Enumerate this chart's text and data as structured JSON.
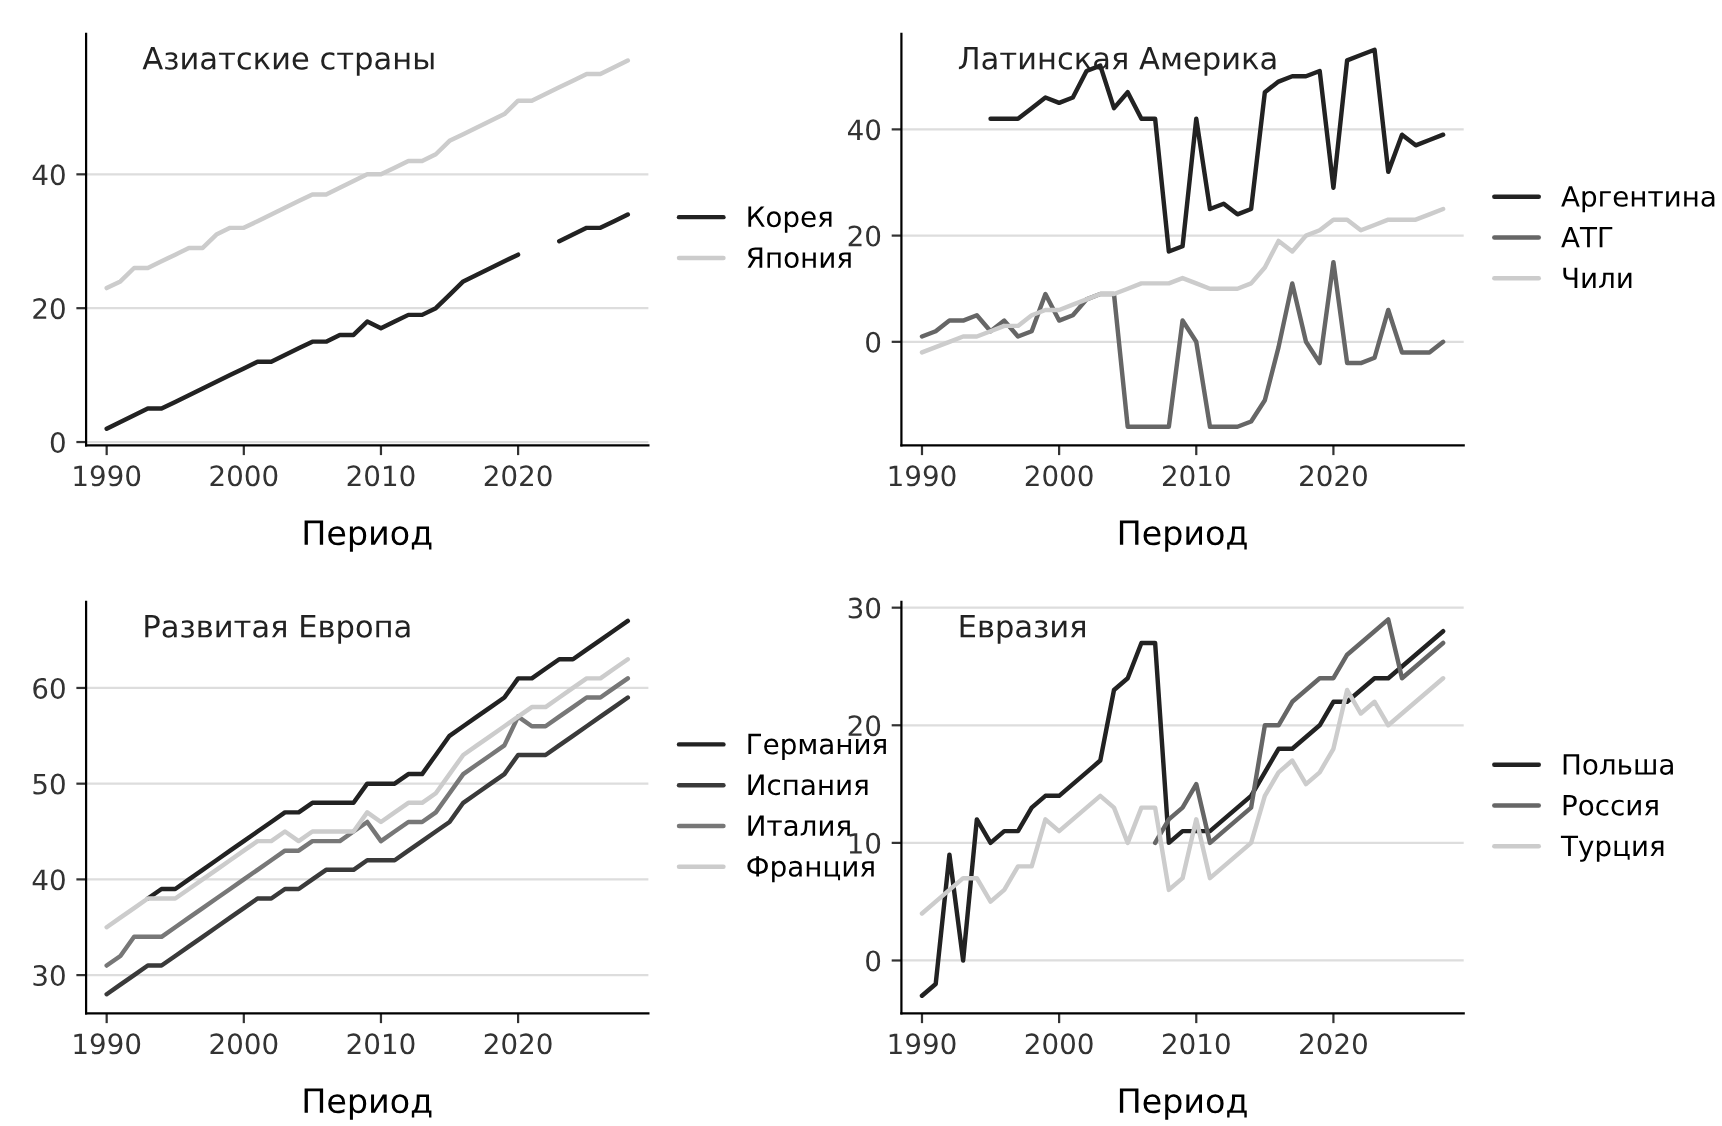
{
  "chart_data": [
    {
      "type": "line",
      "title": "Азиатские страны",
      "xlabel": "Период",
      "x": [
        1990,
        1991,
        1992,
        1993,
        1994,
        1995,
        1996,
        1997,
        1998,
        1999,
        2000,
        2001,
        2002,
        2003,
        2004,
        2005,
        2006,
        2007,
        2008,
        2009,
        2010,
        2011,
        2012,
        2013,
        2014,
        2015,
        2016,
        2017,
        2018,
        2019,
        2020,
        2021,
        2022,
        2023,
        2024,
        2025,
        2026,
        2027,
        2028
      ],
      "xlim": [
        1988.5,
        2029.5
      ],
      "xticks": [
        1990,
        2000,
        2010,
        2020
      ],
      "ylim": [
        -0.5,
        61
      ],
      "yticks": [
        0,
        20,
        40
      ],
      "grid": "y",
      "legend": "right",
      "series": [
        {
          "name": "Корея",
          "color": "#222222",
          "values": [
            2,
            3,
            4,
            5,
            5,
            6,
            7,
            8,
            9,
            10,
            11,
            12,
            12,
            13,
            14,
            15,
            15,
            16,
            16,
            18,
            17,
            18,
            19,
            19,
            20,
            22,
            24,
            25,
            26,
            27,
            28,
            null,
            null,
            30,
            31,
            32,
            32,
            33,
            34
          ]
        },
        {
          "name": "Япония",
          "color": "#cccccc",
          "values": [
            23,
            24,
            26,
            26,
            27,
            28,
            29,
            29,
            31,
            32,
            32,
            33,
            34,
            35,
            36,
            37,
            37,
            38,
            39,
            40,
            40,
            41,
            42,
            42,
            43,
            45,
            46,
            47,
            48,
            49,
            51,
            51,
            52,
            53,
            54,
            55,
            55,
            56,
            57
          ]
        }
      ]
    },
    {
      "type": "line",
      "title": "Латинская Америка",
      "xlabel": "Период",
      "x": [
        1990,
        1991,
        1992,
        1993,
        1994,
        1995,
        1996,
        1997,
        1998,
        1999,
        2000,
        2001,
        2002,
        2003,
        2004,
        2005,
        2006,
        2007,
        2008,
        2009,
        2010,
        2011,
        2012,
        2013,
        2014,
        2015,
        2016,
        2017,
        2018,
        2019,
        2020,
        2021,
        2022,
        2023,
        2024,
        2025,
        2026,
        2027,
        2028
      ],
      "xlim": [
        1988.5,
        2029.5
      ],
      "xticks": [
        1990,
        2000,
        2010,
        2020
      ],
      "ylim": [
        -19.5,
        58
      ],
      "yticks": [
        0,
        20,
        40
      ],
      "grid": "y",
      "legend": "right",
      "series": [
        {
          "name": "Аргентина",
          "color": "#222222",
          "values": [
            null,
            null,
            null,
            null,
            null,
            42,
            42,
            42,
            44,
            46,
            45,
            46,
            51,
            52,
            44,
            47,
            42,
            42,
            17,
            18,
            42,
            25,
            26,
            24,
            25,
            47,
            49,
            50,
            50,
            51,
            29,
            53,
            54,
            55,
            32,
            39,
            37,
            38,
            39
          ]
        },
        {
          "name": "АТГ",
          "color": "#666666",
          "values": [
            1,
            2,
            4,
            4,
            5,
            2,
            4,
            1,
            2,
            9,
            4,
            5,
            8,
            9,
            9,
            -16,
            -16,
            -16,
            -16,
            4,
            0,
            -16,
            -16,
            -16,
            -15,
            -11,
            -1,
            11,
            0,
            -4,
            15,
            -4,
            -4,
            -3,
            6,
            -2,
            -2,
            -2,
            0
          ]
        },
        {
          "name": "Чили",
          "color": "#cccccc",
          "values": [
            -2,
            -1,
            0,
            1,
            1,
            2,
            3,
            3,
            5,
            6,
            6,
            7,
            8,
            9,
            9,
            10,
            11,
            11,
            11,
            12,
            11,
            10,
            10,
            10,
            11,
            14,
            19,
            17,
            20,
            21,
            23,
            23,
            21,
            22,
            23,
            23,
            23,
            24,
            25
          ]
        }
      ]
    },
    {
      "type": "line",
      "title": "Развитая Европа",
      "xlabel": "Период",
      "x": [
        1990,
        1991,
        1992,
        1993,
        1994,
        1995,
        1996,
        1997,
        1998,
        1999,
        2000,
        2001,
        2002,
        2003,
        2004,
        2005,
        2006,
        2007,
        2008,
        2009,
        2010,
        2011,
        2012,
        2013,
        2014,
        2015,
        2016,
        2017,
        2018,
        2019,
        2020,
        2021,
        2022,
        2023,
        2024,
        2025,
        2026,
        2027,
        2028
      ],
      "xlim": [
        1988.5,
        2029.5
      ],
      "xticks": [
        1990,
        2000,
        2010,
        2020
      ],
      "ylim": [
        26,
        69
      ],
      "yticks": [
        30,
        40,
        50,
        60
      ],
      "grid": "y",
      "legend": "right",
      "series": [
        {
          "name": "Германия",
          "color": "#222222",
          "values": [
            null,
            null,
            null,
            38,
            39,
            39,
            40,
            41,
            42,
            43,
            44,
            45,
            46,
            47,
            47,
            48,
            48,
            48,
            48,
            50,
            50,
            50,
            51,
            51,
            53,
            55,
            56,
            57,
            58,
            59,
            61,
            61,
            62,
            63,
            63,
            64,
            65,
            66,
            67
          ]
        },
        {
          "name": "Испания",
          "color": "#3a3a3a",
          "values": [
            28,
            29,
            30,
            31,
            31,
            32,
            33,
            34,
            35,
            36,
            37,
            38,
            38,
            39,
            39,
            40,
            41,
            41,
            41,
            42,
            42,
            42,
            43,
            44,
            45,
            46,
            48,
            49,
            50,
            51,
            53,
            53,
            53,
            54,
            55,
            56,
            57,
            58,
            59
          ]
        },
        {
          "name": "Италия",
          "color": "#777777",
          "values": [
            31,
            32,
            34,
            34,
            34,
            35,
            36,
            37,
            38,
            39,
            40,
            41,
            42,
            43,
            43,
            44,
            44,
            44,
            45,
            46,
            44,
            45,
            46,
            46,
            47,
            49,
            51,
            52,
            53,
            54,
            57,
            56,
            56,
            57,
            58,
            59,
            59,
            60,
            61
          ]
        },
        {
          "name": "Франция",
          "color": "#cccccc",
          "values": [
            35,
            36,
            37,
            38,
            38,
            38,
            39,
            40,
            41,
            42,
            43,
            44,
            44,
            45,
            44,
            45,
            45,
            45,
            45,
            47,
            46,
            47,
            48,
            48,
            49,
            51,
            53,
            54,
            55,
            56,
            57,
            58,
            58,
            59,
            60,
            61,
            61,
            62,
            63
          ]
        }
      ]
    },
    {
      "type": "line",
      "title": "Евразия",
      "xlabel": "Период",
      "x": [
        1990,
        1991,
        1992,
        1993,
        1994,
        1995,
        1996,
        1997,
        1998,
        1999,
        2000,
        2001,
        2002,
        2003,
        2004,
        2005,
        2006,
        2007,
        2008,
        2009,
        2010,
        2011,
        2012,
        2013,
        2014,
        2015,
        2016,
        2017,
        2018,
        2019,
        2020,
        2021,
        2022,
        2023,
        2024,
        2025,
        2026,
        2027,
        2028
      ],
      "xlim": [
        1988.5,
        2029.5
      ],
      "xticks": [
        1990,
        2000,
        2010,
        2020
      ],
      "ylim": [
        -4.5,
        30.5
      ],
      "yticks": [
        0,
        10,
        20,
        30
      ],
      "grid": "y",
      "legend": "right",
      "series": [
        {
          "name": "Польша",
          "color": "#222222",
          "values": [
            -3,
            -2,
            9,
            0,
            12,
            10,
            11,
            11,
            13,
            14,
            14,
            15,
            16,
            17,
            23,
            24,
            27,
            27,
            10,
            11,
            11,
            11,
            12,
            13,
            14,
            16,
            18,
            18,
            19,
            20,
            22,
            22,
            23,
            24,
            24,
            25,
            26,
            27,
            28
          ]
        },
        {
          "name": "Россия",
          "color": "#666666",
          "values": [
            null,
            null,
            null,
            null,
            null,
            null,
            null,
            null,
            null,
            null,
            null,
            null,
            null,
            null,
            null,
            null,
            null,
            10,
            12,
            13,
            15,
            10,
            11,
            12,
            13,
            20,
            20,
            22,
            23,
            24,
            24,
            26,
            27,
            28,
            29,
            24,
            25,
            26,
            27
          ]
        },
        {
          "name": "Турция",
          "color": "#cccccc",
          "values": [
            4,
            5,
            6,
            7,
            7,
            5,
            6,
            8,
            8,
            12,
            11,
            12,
            13,
            14,
            13,
            10,
            13,
            13,
            6,
            7,
            12,
            7,
            8,
            9,
            10,
            14,
            16,
            17,
            15,
            16,
            18,
            23,
            21,
            22,
            20,
            21,
            22,
            23,
            24
          ]
        }
      ]
    }
  ]
}
